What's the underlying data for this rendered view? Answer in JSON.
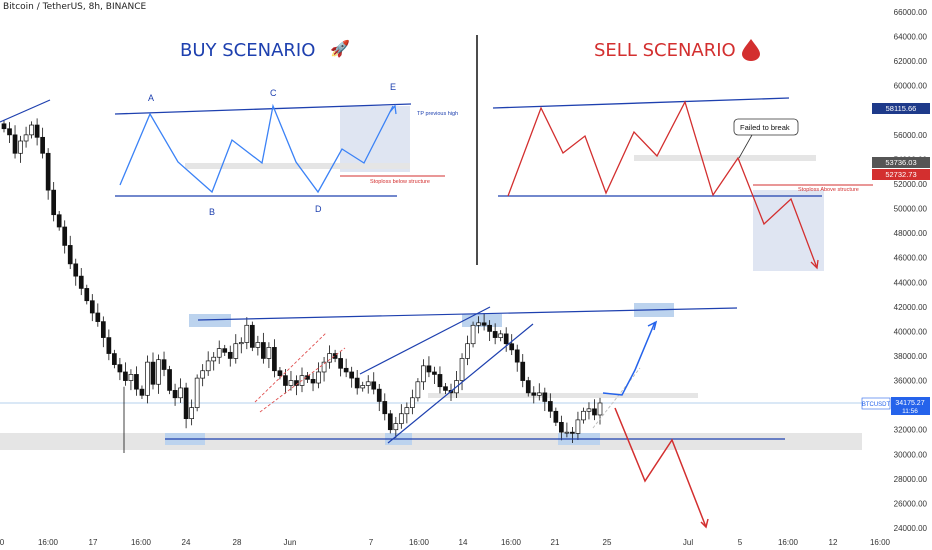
{
  "header": {
    "title": "Bitcoin / TetherUS, 8h, BINANCE"
  },
  "chart_data": {
    "type": "candlestick",
    "ylim": [
      24000,
      66000
    ],
    "y_ticks": [
      "66000.00",
      "64000.00",
      "62000.00",
      "60000.00",
      "58000.00",
      "56000.00",
      "54000.00",
      "52000.00",
      "50000.00",
      "48000.00",
      "46000.00",
      "44000.00",
      "42000.00",
      "40000.00",
      "38000.00",
      "36000.00",
      "34000.00",
      "32000.00",
      "30000.00",
      "28000.00",
      "26000.00",
      "24000.00"
    ],
    "x_ticks": [
      "0",
      "16:00",
      "17",
      "16:00",
      "24",
      "28",
      "Jun",
      "7",
      "16:00",
      "14",
      "16:00",
      "21",
      "25",
      "Jul",
      "5",
      "16:00",
      "12",
      "16:00"
    ],
    "symbol_label": "BTCUSDT",
    "price_badge": "34175.27",
    "price_timer": "11:56",
    "closes": [
      56500,
      56000,
      54500,
      55500,
      56000,
      56800,
      55800,
      54500,
      51500,
      49500,
      48500,
      47000,
      45500,
      44500,
      43500,
      42500,
      41500,
      40800,
      39500,
      38200,
      37300,
      36700,
      36000,
      36500,
      35300,
      34800,
      37500,
      35700,
      37700,
      36900,
      35200,
      34600,
      35400,
      32900,
      33800,
      36200,
      36800,
      37600,
      37900,
      38600,
      38300,
      37800,
      39000,
      39100,
      40500,
      38700,
      39100,
      37800,
      38700,
      36800,
      36400,
      35600,
      36000,
      35600,
      36400,
      36100,
      35800,
      36700,
      37500,
      38200,
      37800,
      37000,
      36700,
      36200,
      35400,
      35600,
      35900,
      35300,
      34300,
      33300,
      32000,
      32500,
      33300,
      33800,
      34600,
      35900,
      37200,
      36700,
      36500,
      35500,
      35200,
      35000,
      36000,
      37800,
      39000,
      40500,
      40700,
      40500,
      40000,
      39500,
      39800,
      39000,
      38500,
      37500,
      36000,
      35000,
      34800,
      35000,
      34300,
      33500,
      32600,
      31800,
      31800,
      31700,
      32800,
      33500,
      33700,
      33200,
      34175
    ],
    "levels": {
      "blue_upper": 40800,
      "blue_lower": 31000
    },
    "annotations": {
      "buy_title": "BUY SCENARIO",
      "sell_title": "SELL SCENARIO",
      "buy_A": "A",
      "buy_B": "B",
      "buy_C": "C",
      "buy_D": "D",
      "buy_E": "E",
      "tp_label": "TP previous high",
      "stoploss_below": "Stoploss below structure",
      "failed_label": "Failed to break",
      "stoploss_above": "Stoploss Above structure"
    },
    "price_tags": [
      {
        "value": "58115.66",
        "color": "#1e3a8a"
      },
      {
        "value": "53736.03",
        "color": "#555555"
      },
      {
        "value": "52732.73",
        "color": "#d32f2f"
      }
    ],
    "colors": {
      "candle": "#111111",
      "blue": "#1e40af",
      "trend_blue": "#2563eb",
      "red": "#d32f2f",
      "zone": "#dfe3ea",
      "blue_zone": "#bcd3ee"
    },
    "icons": {
      "rocket": "rocket-icon",
      "drop": "blood-drop-icon"
    }
  }
}
